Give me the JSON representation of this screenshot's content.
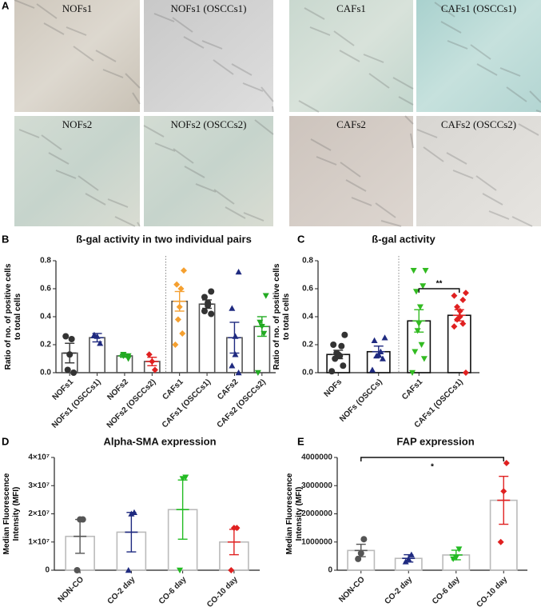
{
  "panel_labels": [
    "A",
    "B",
    "C",
    "D",
    "E"
  ],
  "images": [
    {
      "label": "NOFs1"
    },
    {
      "label": "NOFs1 (OSCCs1)"
    },
    {
      "label": "CAFs1"
    },
    {
      "label": "CAFs1 (OSCCs1)"
    },
    {
      "label": "NOFs2"
    },
    {
      "label": "NOFs2 (OSCCs2)"
    },
    {
      "label": "CAFs2"
    },
    {
      "label": "CAFs2 (OSCCs2)"
    }
  ],
  "chart_data": [
    {
      "type": "bar",
      "title": "ß-gal activity in two individual pairs",
      "ylabel": [
        "Ratio of no. of positive cells",
        "to total cells"
      ],
      "categories": [
        "NOFs1",
        "NOFs1 (OSCCs1)",
        "NOFs2",
        "NOFs2 (OSCCs2)",
        "CAFs1",
        "CAFs1 (OSCCs1)",
        "CAFs2",
        "CAFs2 (OSCCs2)"
      ],
      "values": [
        0.14,
        0.25,
        0.12,
        0.08,
        0.51,
        0.49,
        0.25,
        0.33
      ],
      "errors": [
        0.07,
        0.03,
        0.01,
        0.03,
        0.07,
        0.03,
        0.11,
        0.07
      ],
      "points": [
        [
          0.0,
          0.02,
          0.13,
          0.24,
          0.26
        ],
        [
          0.21,
          0.26,
          0.27
        ],
        [
          0.1,
          0.12,
          0.13,
          0.12
        ],
        [
          0.02,
          0.08,
          0.13
        ],
        [
          0.73,
          0.63,
          0.6,
          0.47,
          0.38,
          0.28,
          0.2
        ],
        [
          0.58,
          0.54,
          0.5,
          0.48,
          0.44,
          0.42
        ],
        [
          0.72,
          0.46,
          0.26,
          0.13,
          0.05,
          0.0
        ],
        [
          0.55,
          0.36,
          0.33,
          0.28,
          0.0
        ]
      ],
      "colors": [
        "#333333",
        "#1f2a80",
        "#22aa22",
        "#e02020",
        "#f5a030",
        "#333333",
        "#1f2a80",
        "#22aa22"
      ],
      "markers": [
        "circle",
        "triangle",
        "tdown",
        "diamond",
        "diamond",
        "circle",
        "triangle",
        "tdown"
      ],
      "bar_color": "#555555",
      "ylim": [
        0,
        0.8
      ],
      "yticks": [
        {
          "value": 0,
          "label": "0.0"
        },
        0.2,
        0.4,
        0.6,
        0.8
      ]
    },
    {
      "type": "bar",
      "title": "ß-gal activity",
      "ylabel": [
        "Ratio of no. of positive cells",
        "to total cells"
      ],
      "categories": [
        "NOFs",
        "NOFs (OSCCs)",
        "CAFs1",
        "CAFs1 (OSCCs1)"
      ],
      "values": [
        0.13,
        0.15,
        0.37,
        0.41
      ],
      "errors": [
        0.03,
        0.04,
        0.08,
        0.04
      ],
      "points": [
        [
          0.27,
          0.2,
          0.19,
          0.14,
          0.13,
          0.12,
          0.1,
          0.05,
          0.01
        ],
        [
          0.25,
          0.23,
          0.15,
          0.13,
          0.12,
          0.1,
          0.02
        ],
        [
          0.73,
          0.73,
          0.62,
          0.58,
          0.47,
          0.35,
          0.3,
          0.2,
          0.15,
          0.1,
          0.0
        ],
        [
          0.57,
          0.55,
          0.52,
          0.47,
          0.44,
          0.4,
          0.38,
          0.35,
          0.33,
          0.0
        ]
      ],
      "colors": [
        "#333333",
        "#1f2a80",
        "#33bb22",
        "#e02020"
      ],
      "markers": [
        "circle",
        "triangle",
        "tdown",
        "diamond"
      ],
      "bar_color": "#111111",
      "annotation": "**",
      "ylim": [
        0,
        0.8
      ],
      "yticks": [
        {
          "value": 0,
          "label": "0.0"
        },
        0.2,
        0.4,
        0.6,
        0.8
      ]
    },
    {
      "type": "bar",
      "title": "Alpha-SMA expression",
      "ylabel": [
        "Median Fluorescence",
        "Intensity (MFI)"
      ],
      "categories": [
        "NON-CO",
        "CO-2 day",
        "CO-6 day",
        "CO-10 day"
      ],
      "values": [
        12000000,
        13500000,
        21500000,
        10000000
      ],
      "errors": [
        6000000,
        7000000,
        10500000,
        4500000
      ],
      "points": [
        [
          18000000,
          18000000,
          0
        ],
        [
          20500000,
          20000000,
          0
        ],
        [
          33000000,
          32500000,
          0
        ],
        [
          15000000,
          15000000,
          0
        ]
      ],
      "colors": [
        "#555555",
        "#1f2a80",
        "#22bb22",
        "#e02020"
      ],
      "markers": [
        "circle",
        "triangle",
        "tdown",
        "diamond"
      ],
      "bar_color": "#bbbbbb",
      "ylim": [
        0,
        40000000
      ],
      "yticks": [
        0,
        {
          "value": 10000000,
          "label": "1×10⁷"
        },
        {
          "value": 20000000,
          "label": "2×10⁷"
        },
        {
          "value": 30000000,
          "label": "3×10⁷"
        },
        {
          "value": 40000000,
          "label": "4×10⁷"
        }
      ]
    },
    {
      "type": "bar",
      "title": "FAP expression",
      "ylabel": [
        "Median Fluorescence",
        "Intensity (MFI)"
      ],
      "categories": [
        "NON-CO",
        "CO-2 day",
        "CO-6 day",
        "CO-10 day"
      ],
      "values": [
        700000,
        420000,
        540000,
        2480000
      ],
      "errors": [
        220000,
        130000,
        170000,
        850000
      ],
      "points": [
        [
          1100000,
          600000,
          400000
        ],
        [
          550000,
          400000,
          300000
        ],
        [
          750000,
          450000,
          400000
        ],
        [
          3800000,
          2800000,
          1000000
        ]
      ],
      "colors": [
        "#555555",
        "#1f2a80",
        "#22bb22",
        "#e02020"
      ],
      "markers": [
        "circle",
        "triangle",
        "tdown",
        "diamond"
      ],
      "bar_color": "#bbbbbb",
      "annotation": "*",
      "ylim": [
        0,
        4000000
      ],
      "yticks": [
        0,
        1000000,
        2000000,
        3000000,
        4000000
      ]
    }
  ]
}
